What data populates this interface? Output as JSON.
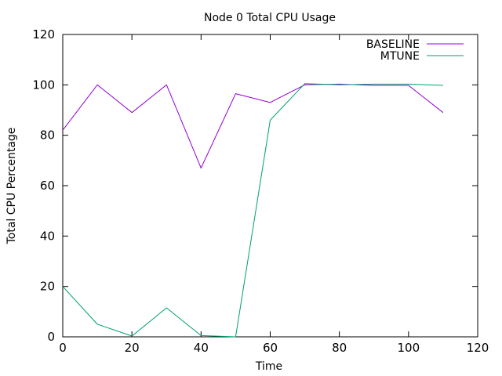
{
  "chart_data": {
    "type": "line",
    "title": "Node 0 Total CPU Usage",
    "xlabel": "Time",
    "ylabel": "Total CPU Percentage",
    "xlim": [
      0,
      120
    ],
    "ylim": [
      0,
      120
    ],
    "xticks": [
      0,
      20,
      40,
      60,
      80,
      100,
      120
    ],
    "yticks": [
      0,
      20,
      40,
      60,
      80,
      100,
      120
    ],
    "grid": false,
    "legend_position": "top-right",
    "series": [
      {
        "name": "BASELINE",
        "color": "#9400d3",
        "x": [
          0,
          10,
          20,
          30,
          40,
          50,
          60,
          70,
          80,
          90,
          100,
          110
        ],
        "y": [
          82,
          100,
          89,
          100,
          67,
          96.5,
          93,
          100,
          100.3,
          99.8,
          99.8,
          89
        ]
      },
      {
        "name": "MTUNE",
        "color": "#009e73",
        "x": [
          0,
          10,
          20,
          30,
          40,
          50,
          60,
          70,
          80,
          90,
          100,
          110
        ],
        "y": [
          20,
          5,
          0.3,
          11.5,
          0.5,
          0,
          86,
          100.5,
          100,
          100.3,
          100.3,
          99.8
        ]
      }
    ]
  }
}
